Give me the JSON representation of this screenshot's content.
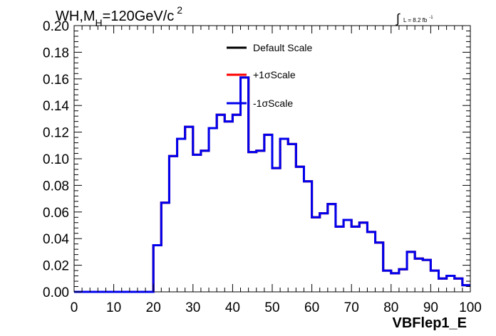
{
  "chart_data": {
    "type": "step",
    "title": "",
    "xlabel": "VBFlep1_E",
    "ylabel": "",
    "xlim": [
      0,
      100
    ],
    "ylim": [
      0,
      0.2
    ],
    "grid": false,
    "legend_position": "top-center",
    "x_ticks": [
      0,
      10,
      20,
      30,
      40,
      50,
      60,
      70,
      80,
      90,
      100
    ],
    "y_ticks": [
      0.0,
      0.02,
      0.04,
      0.06,
      0.08,
      0.1,
      0.12,
      0.14,
      0.16,
      0.18,
      0.2
    ],
    "x_tick_labels": [
      "0",
      "10",
      "20",
      "30",
      "40",
      "50",
      "60",
      "70",
      "80",
      "90",
      "100"
    ],
    "y_tick_labels": [
      "0.00",
      "0.02",
      "0.04",
      "0.06",
      "0.08",
      "0.10",
      "0.12",
      "0.14",
      "0.16",
      "0.18",
      "0.20"
    ],
    "bin_width": 2,
    "bin_edges": [
      0,
      2,
      4,
      6,
      8,
      10,
      12,
      14,
      16,
      18,
      20,
      22,
      24,
      26,
      28,
      30,
      32,
      34,
      36,
      38,
      40,
      42,
      44,
      46,
      48,
      50,
      52,
      54,
      56,
      58,
      60,
      62,
      64,
      66,
      68,
      70,
      72,
      74,
      76,
      78,
      80,
      82,
      84,
      86,
      88,
      90,
      92,
      94,
      96,
      98,
      100
    ],
    "series": [
      {
        "name": "Default Scale",
        "color": "#000000",
        "values": [
          0,
          0,
          0,
          0,
          0,
          0,
          0,
          0,
          0,
          0,
          0.035,
          0.067,
          0.102,
          0.115,
          0.124,
          0.103,
          0.106,
          0.123,
          0.133,
          0.128,
          0.133,
          0.161,
          0.105,
          0.106,
          0.118,
          0.093,
          0.115,
          0.111,
          0.094,
          0.083,
          0.056,
          0.059,
          0.066,
          0.049,
          0.054,
          0.049,
          0.052,
          0.045,
          0.037,
          0.016,
          0.014,
          0.017,
          0.03,
          0.025,
          0.024,
          0.016,
          0.01,
          0.012,
          0.01,
          0.005
        ]
      },
      {
        "name": "+1σScale",
        "color": "#ff0000",
        "values": [
          0,
          0,
          0,
          0,
          0,
          0,
          0,
          0,
          0,
          0,
          0.035,
          0.067,
          0.102,
          0.115,
          0.124,
          0.103,
          0.106,
          0.123,
          0.133,
          0.128,
          0.133,
          0.161,
          0.105,
          0.106,
          0.118,
          0.093,
          0.115,
          0.111,
          0.094,
          0.083,
          0.056,
          0.059,
          0.066,
          0.049,
          0.054,
          0.049,
          0.052,
          0.045,
          0.037,
          0.016,
          0.014,
          0.017,
          0.03,
          0.025,
          0.024,
          0.016,
          0.01,
          0.012,
          0.01,
          0.005
        ]
      },
      {
        "name": "-1σScale",
        "color": "#0000ee",
        "values": [
          0,
          0,
          0,
          0,
          0,
          0,
          0,
          0,
          0,
          0,
          0.035,
          0.067,
          0.102,
          0.115,
          0.124,
          0.103,
          0.106,
          0.123,
          0.133,
          0.128,
          0.133,
          0.161,
          0.105,
          0.106,
          0.118,
          0.093,
          0.115,
          0.111,
          0.094,
          0.083,
          0.056,
          0.059,
          0.066,
          0.049,
          0.054,
          0.049,
          0.052,
          0.045,
          0.037,
          0.016,
          0.014,
          0.017,
          0.03,
          0.025,
          0.024,
          0.016,
          0.01,
          0.012,
          0.01,
          0.005
        ]
      }
    ],
    "annotations": {
      "process_main": "WH,M",
      "process_sub": "H",
      "process_rest": "=120GeV/c",
      "process_sup": "2",
      "lumi_integral": "∫",
      "lumi_text": "L = 8.2 fb",
      "lumi_sup": "-1"
    }
  }
}
